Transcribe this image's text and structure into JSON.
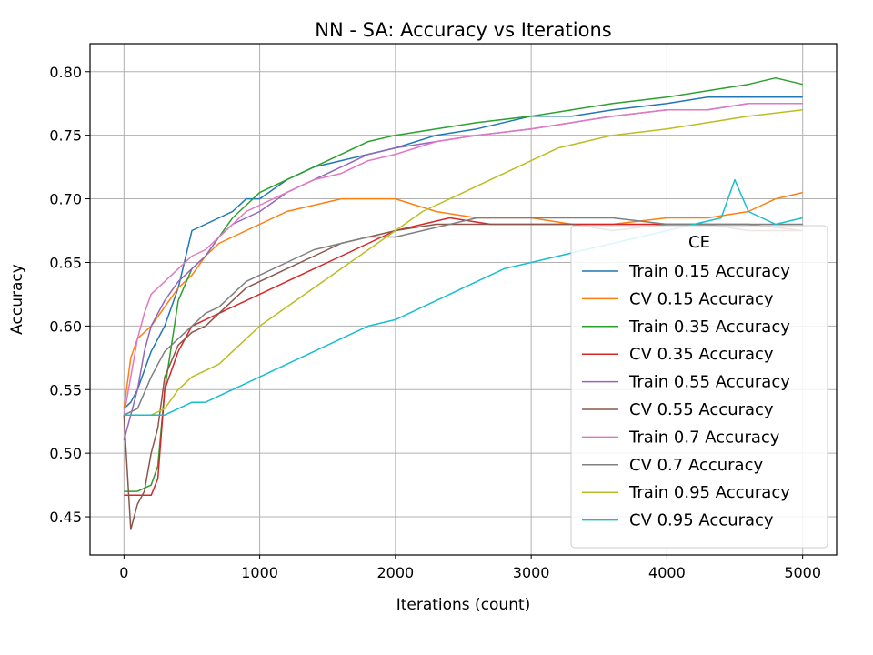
{
  "chart_data": {
    "type": "line",
    "title": "NN - SA: Accuracy vs Iterations",
    "xlabel": "Iterations (count)",
    "ylabel": "Accuracy",
    "xlim": [
      -250,
      5250
    ],
    "ylim": [
      0.42,
      0.822
    ],
    "x_ticks": [
      0,
      1000,
      2000,
      3000,
      4000,
      5000
    ],
    "x_tick_labels": [
      "0",
      "1000",
      "2000",
      "3000",
      "4000",
      "5000"
    ],
    "y_ticks": [
      0.45,
      0.5,
      0.55,
      0.6,
      0.65,
      0.7,
      0.75,
      0.8
    ],
    "y_tick_labels": [
      "0.45",
      "0.50",
      "0.55",
      "0.60",
      "0.65",
      "0.70",
      "0.75",
      "0.80"
    ],
    "grid": true,
    "legend": {
      "title": "CE",
      "position": "lower-right"
    },
    "series": [
      {
        "name": "Train 0.15 Accuracy",
        "color": "#1f77b4",
        "x": [
          0,
          50,
          100,
          150,
          200,
          300,
          400,
          500,
          600,
          700,
          800,
          900,
          1000,
          1200,
          1400,
          1600,
          1800,
          2000,
          2300,
          2600,
          3000,
          3300,
          3600,
          4000,
          4300,
          4600,
          5000
        ],
        "y": [
          0.535,
          0.54,
          0.55,
          0.565,
          0.58,
          0.6,
          0.63,
          0.675,
          0.68,
          0.685,
          0.69,
          0.7,
          0.7,
          0.715,
          0.725,
          0.73,
          0.735,
          0.74,
          0.75,
          0.755,
          0.765,
          0.765,
          0.77,
          0.775,
          0.78,
          0.78,
          0.78
        ]
      },
      {
        "name": "CV 0.15 Accuracy",
        "color": "#ff7f0e",
        "x": [
          0,
          50,
          100,
          150,
          200,
          300,
          400,
          500,
          600,
          700,
          800,
          900,
          1000,
          1200,
          1400,
          1600,
          1800,
          2000,
          2300,
          2600,
          3000,
          3300,
          3600,
          4000,
          4300,
          4600,
          4800,
          5000
        ],
        "y": [
          0.535,
          0.575,
          0.59,
          0.595,
          0.6,
          0.615,
          0.63,
          0.64,
          0.655,
          0.665,
          0.67,
          0.675,
          0.68,
          0.69,
          0.695,
          0.7,
          0.7,
          0.7,
          0.69,
          0.685,
          0.685,
          0.68,
          0.68,
          0.685,
          0.685,
          0.69,
          0.7,
          0.705
        ]
      },
      {
        "name": "Train 0.35 Accuracy",
        "color": "#2ca02c",
        "x": [
          0,
          100,
          200,
          250,
          300,
          400,
          500,
          600,
          700,
          800,
          900,
          1000,
          1200,
          1400,
          1600,
          1800,
          2000,
          2300,
          2600,
          3000,
          3300,
          3600,
          4000,
          4300,
          4600,
          4800,
          5000
        ],
        "y": [
          0.47,
          0.47,
          0.475,
          0.49,
          0.55,
          0.62,
          0.645,
          0.655,
          0.67,
          0.685,
          0.695,
          0.705,
          0.715,
          0.725,
          0.735,
          0.745,
          0.75,
          0.755,
          0.76,
          0.765,
          0.77,
          0.775,
          0.78,
          0.785,
          0.79,
          0.795,
          0.79
        ]
      },
      {
        "name": "CV 0.35 Accuracy",
        "color": "#d62728",
        "x": [
          0,
          100,
          200,
          250,
          300,
          400,
          500,
          600,
          700,
          800,
          900,
          1000,
          1200,
          1400,
          1600,
          1800,
          2000,
          2200,
          2400,
          2700,
          3000,
          3300,
          3600,
          4000,
          4300,
          4600,
          5000
        ],
        "y": [
          0.467,
          0.467,
          0.467,
          0.48,
          0.55,
          0.58,
          0.6,
          0.605,
          0.61,
          0.615,
          0.62,
          0.625,
          0.635,
          0.645,
          0.655,
          0.665,
          0.675,
          0.68,
          0.685,
          0.68,
          0.68,
          0.68,
          0.68,
          0.68,
          0.68,
          0.68,
          0.675
        ]
      },
      {
        "name": "Train 0.55 Accuracy",
        "color": "#9467bd",
        "x": [
          0,
          50,
          100,
          150,
          200,
          300,
          400,
          500,
          600,
          700,
          800,
          900,
          1000,
          1200,
          1400,
          1600,
          1800,
          2000,
          2300,
          2600,
          3000,
          3300,
          3600,
          4000,
          4300,
          4600,
          5000
        ],
        "y": [
          0.51,
          0.53,
          0.55,
          0.58,
          0.6,
          0.62,
          0.635,
          0.645,
          0.655,
          0.67,
          0.68,
          0.685,
          0.69,
          0.705,
          0.715,
          0.725,
          0.735,
          0.74,
          0.745,
          0.75,
          0.755,
          0.76,
          0.765,
          0.77,
          0.77,
          0.775,
          0.775
        ]
      },
      {
        "name": "CV 0.55 Accuracy",
        "color": "#8c564b",
        "x": [
          0,
          50,
          100,
          150,
          200,
          250,
          300,
          400,
          500,
          600,
          700,
          800,
          900,
          1000,
          1200,
          1400,
          1600,
          1800,
          2000,
          2300,
          2600,
          3000,
          3300,
          3600,
          4000,
          4300,
          4600,
          5000
        ],
        "y": [
          0.53,
          0.44,
          0.46,
          0.47,
          0.5,
          0.52,
          0.56,
          0.585,
          0.595,
          0.6,
          0.61,
          0.62,
          0.63,
          0.635,
          0.645,
          0.655,
          0.665,
          0.67,
          0.675,
          0.68,
          0.68,
          0.68,
          0.68,
          0.675,
          0.68,
          0.68,
          0.675,
          0.675
        ]
      },
      {
        "name": "Train 0.7 Accuracy",
        "color": "#e377c2",
        "x": [
          0,
          50,
          100,
          150,
          200,
          300,
          400,
          500,
          600,
          700,
          800,
          900,
          1000,
          1200,
          1400,
          1600,
          1800,
          2000,
          2300,
          2600,
          3000,
          3300,
          3600,
          4000,
          4300,
          4600,
          5000
        ],
        "y": [
          0.53,
          0.56,
          0.59,
          0.61,
          0.625,
          0.635,
          0.645,
          0.655,
          0.66,
          0.67,
          0.68,
          0.69,
          0.695,
          0.705,
          0.715,
          0.72,
          0.73,
          0.735,
          0.745,
          0.75,
          0.755,
          0.76,
          0.765,
          0.77,
          0.77,
          0.775,
          0.775
        ]
      },
      {
        "name": "CV 0.7 Accuracy",
        "color": "#7f7f7f",
        "x": [
          0,
          100,
          200,
          300,
          400,
          500,
          600,
          700,
          800,
          900,
          1000,
          1200,
          1400,
          1600,
          1800,
          2000,
          2200,
          2400,
          2600,
          3000,
          3300,
          3600,
          4000,
          4300,
          4600,
          5000
        ],
        "y": [
          0.53,
          0.535,
          0.56,
          0.58,
          0.59,
          0.6,
          0.61,
          0.615,
          0.625,
          0.635,
          0.64,
          0.65,
          0.66,
          0.665,
          0.67,
          0.67,
          0.675,
          0.68,
          0.685,
          0.685,
          0.685,
          0.685,
          0.68,
          0.68,
          0.68,
          0.68
        ]
      },
      {
        "name": "Train 0.95 Accuracy",
        "color": "#bcbd22",
        "x": [
          0,
          100,
          200,
          300,
          400,
          500,
          600,
          700,
          800,
          900,
          1000,
          1200,
          1400,
          1600,
          1800,
          2000,
          2200,
          2400,
          2600,
          2800,
          3000,
          3200,
          3400,
          3600,
          4000,
          4300,
          4600,
          5000
        ],
        "y": [
          0.53,
          0.53,
          0.53,
          0.535,
          0.55,
          0.56,
          0.565,
          0.57,
          0.58,
          0.59,
          0.6,
          0.615,
          0.63,
          0.645,
          0.66,
          0.675,
          0.69,
          0.7,
          0.71,
          0.72,
          0.73,
          0.74,
          0.745,
          0.75,
          0.755,
          0.76,
          0.765,
          0.77
        ]
      },
      {
        "name": "CV 0.95 Accuracy",
        "color": "#17becf",
        "x": [
          0,
          100,
          200,
          300,
          400,
          500,
          600,
          700,
          800,
          900,
          1000,
          1200,
          1400,
          1600,
          1800,
          2000,
          2200,
          2400,
          2600,
          2800,
          3000,
          3200,
          3400,
          3600,
          3800,
          4000,
          4200,
          4400,
          4500,
          4600,
          4800,
          5000
        ],
        "y": [
          0.53,
          0.53,
          0.53,
          0.53,
          0.535,
          0.54,
          0.54,
          0.545,
          0.55,
          0.555,
          0.56,
          0.57,
          0.58,
          0.59,
          0.6,
          0.605,
          0.615,
          0.625,
          0.635,
          0.645,
          0.65,
          0.655,
          0.66,
          0.665,
          0.67,
          0.675,
          0.68,
          0.685,
          0.715,
          0.69,
          0.68,
          0.685
        ]
      }
    ]
  }
}
